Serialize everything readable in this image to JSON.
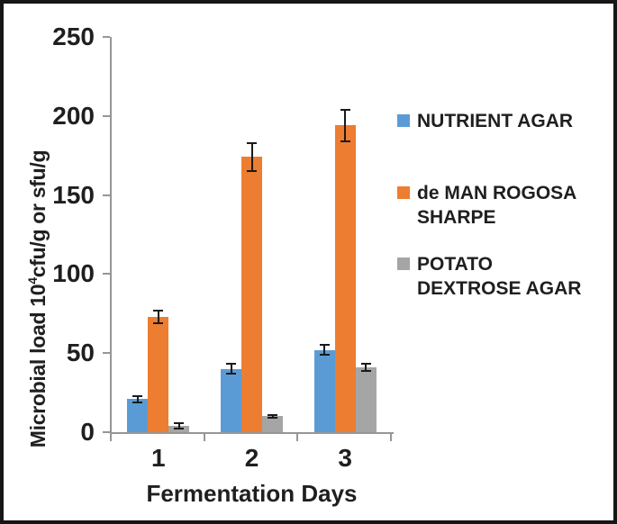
{
  "figure": {
    "background": "#ffffff",
    "border_color": "#161616"
  },
  "chart_data": {
    "type": "bar",
    "title": "",
    "xlabel": "Fermentation Days",
    "ylabel": "Microbial load 10⁴cfu/g or sfu/g",
    "ylabel_parts": {
      "prefix": "Microbial load 10",
      "superscript": "4",
      "suffix": "cfu/g or sfu/g"
    },
    "categories": [
      "1",
      "2",
      "3"
    ],
    "ylim": [
      0,
      250
    ],
    "ytick_labels": [
      "0",
      "50",
      "100",
      "150",
      "200",
      "250"
    ],
    "grid": false,
    "legend_position": "right",
    "axis_color": "#969696",
    "error_bar_color": "#1a1a1a",
    "text_color": "#1f1f1f",
    "series": [
      {
        "name": "NUTRIENT AGAR",
        "color": "#5B9BD5",
        "values": [
          21,
          40,
          52
        ],
        "errors": [
          2,
          3,
          3
        ]
      },
      {
        "name": "de MAN ROGOSA SHARPE",
        "color": "#ED7D31",
        "values": [
          73,
          174,
          194
        ],
        "errors": [
          4,
          9,
          10
        ]
      },
      {
        "name": "POTATO DEXTROSE AGAR",
        "color": "#A5A5A5",
        "values": [
          4,
          10,
          41
        ],
        "errors": [
          1.5,
          1,
          2
        ]
      }
    ]
  },
  "legend": {
    "items": [
      {
        "lines": [
          "NUTRIENT AGAR"
        ],
        "color": "#5B9BD5"
      },
      {
        "lines": [
          "de MAN ROGOSA",
          "SHARPE"
        ],
        "color": "#ED7D31"
      },
      {
        "lines": [
          "POTATO",
          "DEXTROSE AGAR"
        ],
        "color": "#A5A5A5"
      }
    ]
  }
}
